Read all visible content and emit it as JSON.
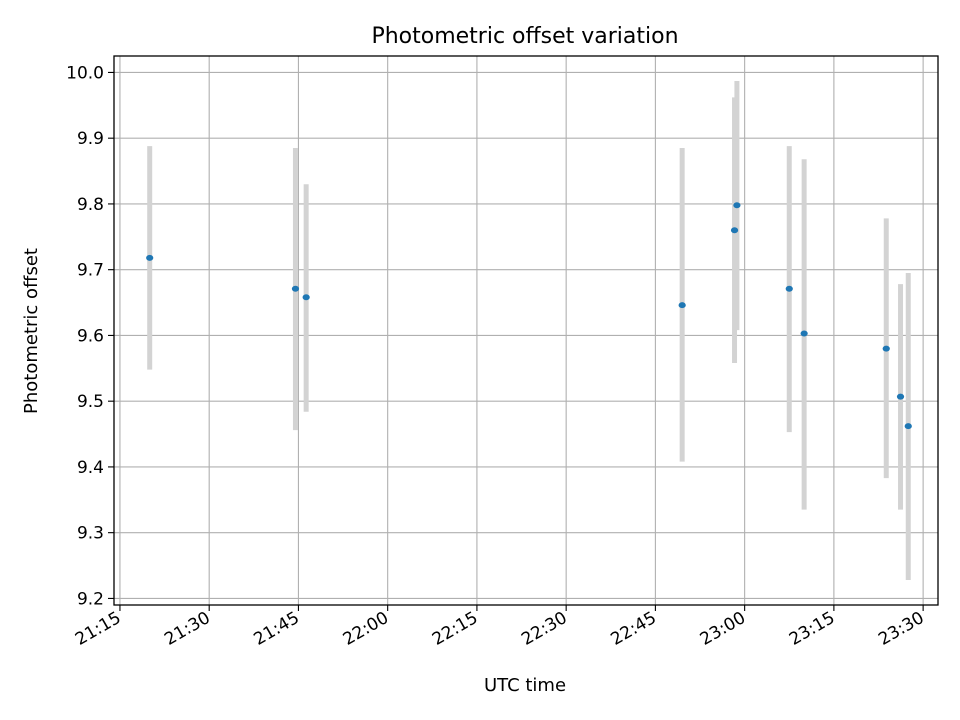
{
  "chart_data": {
    "type": "scatter",
    "title": "Photometric offset variation",
    "xlabel": "UTC time",
    "ylabel": "Photometric offset",
    "x_ticks": [
      "21:15",
      "21:30",
      "21:45",
      "22:00",
      "22:15",
      "22:30",
      "22:45",
      "23:00",
      "23:15",
      "23:30"
    ],
    "y_ticks": [
      "9.2",
      "9.3",
      "9.4",
      "9.5",
      "9.6",
      "9.7",
      "9.8",
      "9.9",
      "10.0"
    ],
    "xlim": [
      "21:14.0",
      "23:32.5"
    ],
    "ylim": [
      9.19,
      10.025
    ],
    "grid": true,
    "point_color": "#1f77b4",
    "errorbar_color": "#d3d3d3",
    "points": [
      {
        "t": "21:20",
        "y": 9.718,
        "lo": 9.548,
        "hi": 9.888
      },
      {
        "t": "21:44.5",
        "y": 9.671,
        "lo": 9.456,
        "hi": 9.885
      },
      {
        "t": "21:46.3",
        "y": 9.658,
        "lo": 9.484,
        "hi": 9.83
      },
      {
        "t": "22:49.5",
        "y": 9.646,
        "lo": 9.408,
        "hi": 9.885
      },
      {
        "t": "22:58.3",
        "y": 9.76,
        "lo": 9.558,
        "hi": 9.962
      },
      {
        "t": "22:58.7",
        "y": 9.798,
        "lo": 9.608,
        "hi": 9.987
      },
      {
        "t": "23:07.5",
        "y": 9.671,
        "lo": 9.453,
        "hi": 9.888
      },
      {
        "t": "23:10",
        "y": 9.603,
        "lo": 9.335,
        "hi": 9.868
      },
      {
        "t": "23:23.8",
        "y": 9.58,
        "lo": 9.383,
        "hi": 9.778
      },
      {
        "t": "23:26.2",
        "y": 9.507,
        "lo": 9.335,
        "hi": 9.678
      },
      {
        "t": "23:27.5",
        "y": 9.462,
        "lo": 9.228,
        "hi": 9.695
      }
    ]
  }
}
